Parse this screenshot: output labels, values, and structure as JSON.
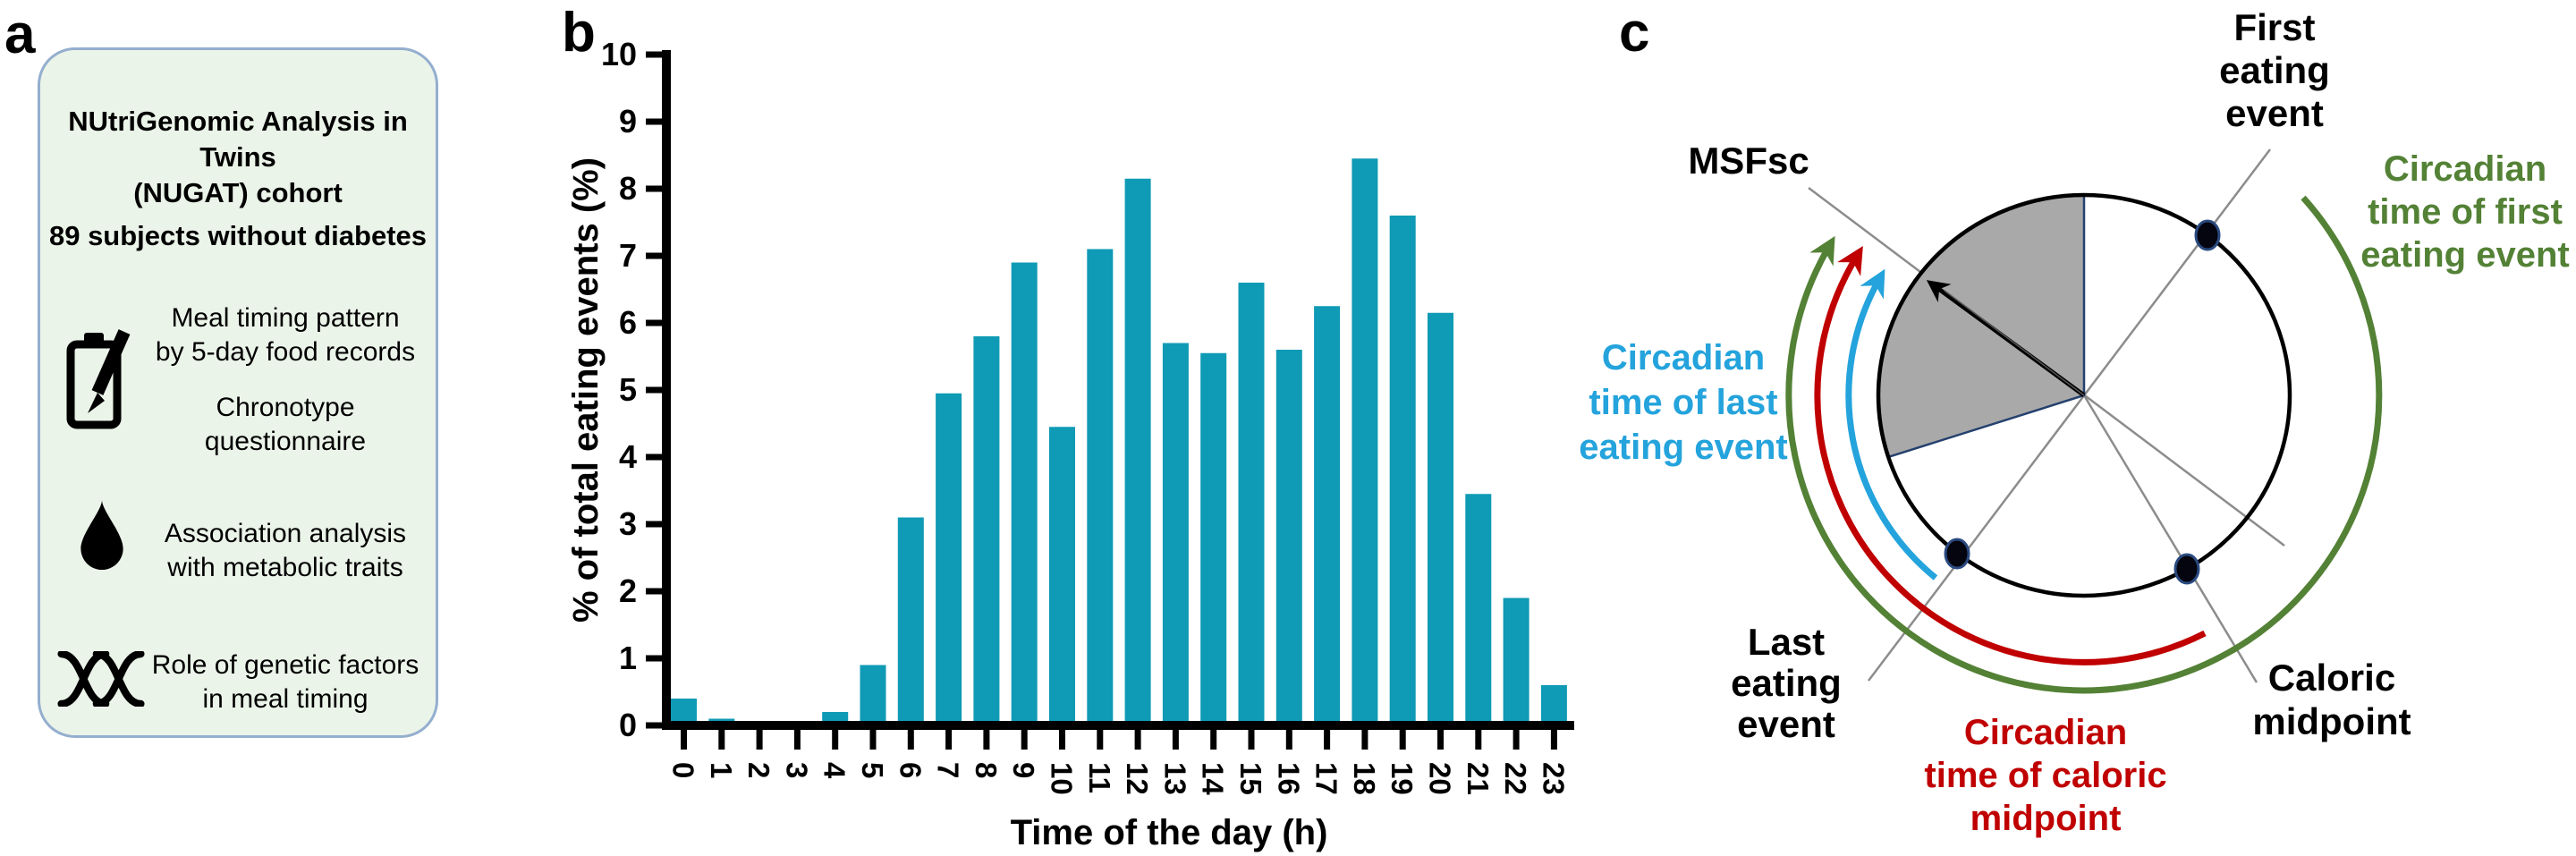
{
  "panel_a": {
    "label": "a",
    "title_lines": [
      "NUtriGenomic Analysis in Twins",
      "(NUGAT) cohort"
    ],
    "subjects_line": "89 subjects without diabetes",
    "row1_icon": "clipboard-pencil-icon",
    "row1_lines_a": [
      "Meal timing pattern",
      "by 5-day food records"
    ],
    "row1_lines_b": [
      "Chronotype",
      "questionnaire"
    ],
    "row2_icon": "water-drop-icon",
    "row2_lines": [
      "Association analysis",
      "with metabolic traits"
    ],
    "row3_icon": "dna-icon",
    "row3_lines": [
      "Role of genetic factors",
      "in meal timing"
    ]
  },
  "panel_b": {
    "label": "b"
  },
  "chart_data": {
    "type": "bar",
    "title": "",
    "xlabel": "Time of the day (h)",
    "ylabel": "% of total eating events (%)",
    "categories": [
      "0",
      "1",
      "2",
      "3",
      "4",
      "5",
      "6",
      "7",
      "8",
      "9",
      "10",
      "11",
      "12",
      "13",
      "14",
      "15",
      "16",
      "17",
      "18",
      "19",
      "20",
      "21",
      "22",
      "23"
    ],
    "values": [
      0.4,
      0.1,
      0,
      0,
      0.2,
      0.9,
      3.1,
      4.95,
      5.8,
      6.9,
      4.45,
      7.1,
      8.15,
      5.7,
      5.55,
      6.6,
      5.6,
      6.25,
      8.45,
      7.6,
      6.15,
      3.45,
      1.9,
      0.6
    ],
    "ylim": [
      0,
      10
    ],
    "ytick_step": 1,
    "grid": false,
    "legend": null,
    "bar_color": "#0F9AB5",
    "axis_color": "#000000"
  },
  "panel_c": {
    "label": "c",
    "msfsc_label": "MSFsc",
    "first_eating_lines": [
      "First",
      "eating",
      "event"
    ],
    "circadian_first_lines": [
      "Circadian",
      "time of first",
      "eating event"
    ],
    "circadian_last_lines": [
      "Circadian",
      "time of last",
      "eating event"
    ],
    "last_eating_lines": [
      "Last",
      "eating",
      "event"
    ],
    "circadian_caloric_lines": [
      "Circadian",
      "time of caloric",
      "midpoint"
    ],
    "caloric_midpoint_lines": [
      "Caloric",
      "midpoint"
    ],
    "colors": {
      "green": "#538135",
      "red": "#C00000",
      "blue": "#24A3DC",
      "sector_fill": "#A9A9A9",
      "sector_border": "#24406E",
      "line_gray": "#8C8C8C"
    }
  }
}
